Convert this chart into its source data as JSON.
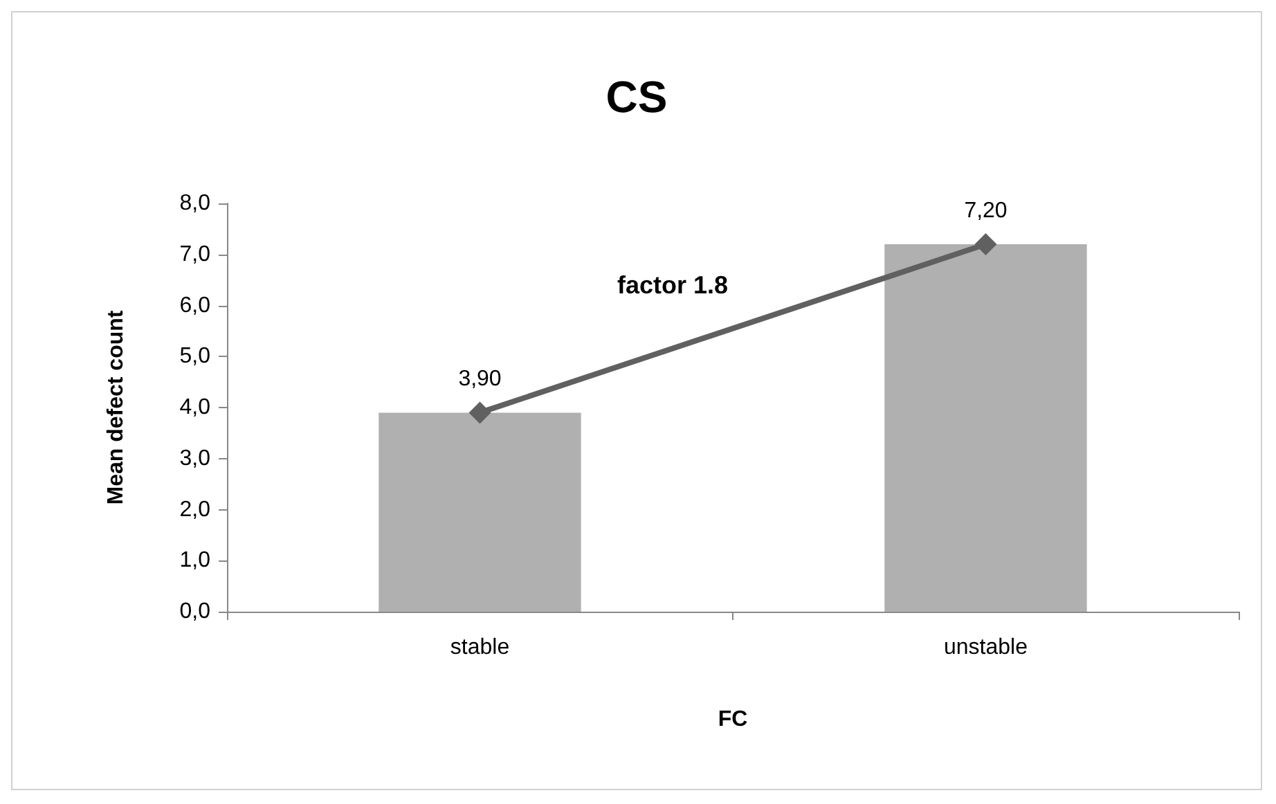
{
  "chart_data": {
    "type": "bar",
    "title": "CS",
    "xlabel": "FC",
    "ylabel": "Mean defect count",
    "categories": [
      "stable",
      "unstable"
    ],
    "series": [
      {
        "color": "#b0b0b0",
        "values": [
          3.9,
          7.2
        ]
      },
      {
        "type": "line",
        "color": "#606060",
        "values": [
          3.9,
          7.2
        ],
        "value_labels": [
          "3,90",
          "7,20"
        ]
      }
    ],
    "ylim": [
      0,
      8
    ],
    "yticks": [
      {
        "value": 0,
        "label": "0,0"
      },
      {
        "value": 1,
        "label": "1,0"
      },
      {
        "value": 2,
        "label": "2,0"
      },
      {
        "value": 3,
        "label": "3,0"
      },
      {
        "value": 4,
        "label": "4,0"
      },
      {
        "value": 5,
        "label": "5,0"
      },
      {
        "value": 6,
        "label": "6,0"
      },
      {
        "value": 7,
        "label": "7,0"
      },
      {
        "value": 8,
        "label": "8,0"
      }
    ],
    "marker": "diamond",
    "line_style": "solid",
    "grid": false,
    "annotations": [
      "factor 1.8"
    ]
  }
}
